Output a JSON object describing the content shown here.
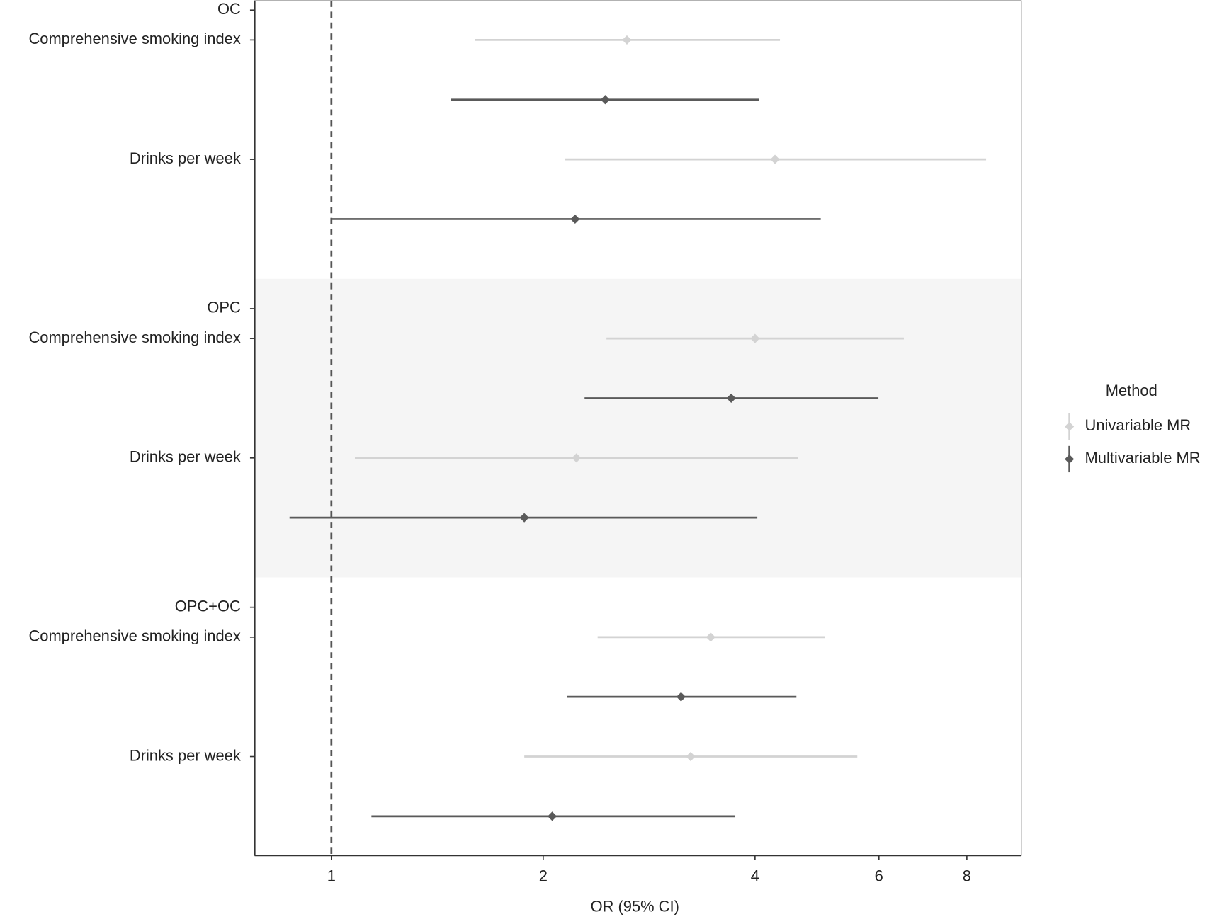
{
  "chart_data": {
    "type": "forest",
    "xlabel": "OR (95% CI)",
    "log_x": true,
    "xlim": [
      0.778,
      9.56
    ],
    "xticks": [
      1,
      2,
      4,
      6,
      8
    ],
    "reference_line": 1,
    "legend_title": "Method",
    "legend_position": "right",
    "series": [
      {
        "name": "Univariable MR",
        "color": "#d3d3d3"
      },
      {
        "name": "Multivariable MR",
        "color": "#5a5a5a"
      }
    ],
    "groups": [
      {
        "name": "OC",
        "shaded": false,
        "exposures": [
          {
            "name": "Comprehensive smoking index",
            "estimates": [
              [
                2.63,
                1.6,
                4.34
              ],
              [
                2.45,
                1.48,
                4.05
              ]
            ]
          },
          {
            "name": "Drinks per week",
            "estimates": [
              [
                4.27,
                2.15,
                8.52
              ],
              [
                2.22,
                1.0,
                4.96
              ]
            ]
          }
        ]
      },
      {
        "name": "OPC",
        "shaded": true,
        "exposures": [
          {
            "name": "Comprehensive smoking index",
            "estimates": [
              [
                4.0,
                2.46,
                6.51
              ],
              [
                3.7,
                2.29,
                5.99
              ]
            ]
          },
          {
            "name": "Drinks per week",
            "estimates": [
              [
                2.23,
                1.08,
                4.6
              ],
              [
                1.88,
                0.872,
                4.03
              ]
            ]
          }
        ]
      },
      {
        "name": "OPC+OC",
        "shaded": false,
        "exposures": [
          {
            "name": "Comprehensive smoking index",
            "estimates": [
              [
                3.46,
                2.39,
                5.03
              ],
              [
                3.14,
                2.16,
                4.58
              ]
            ]
          },
          {
            "name": "Drinks per week",
            "estimates": [
              [
                3.24,
                1.88,
                5.59
              ],
              [
                2.06,
                1.14,
                3.75
              ]
            ]
          }
        ]
      }
    ]
  }
}
